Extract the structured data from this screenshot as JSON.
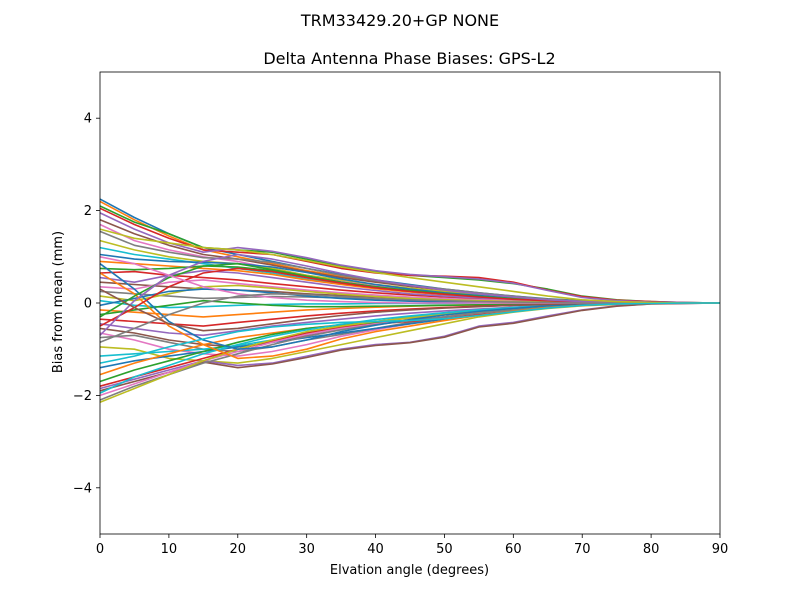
{
  "chart_data": {
    "type": "line",
    "suptitle": "TRM33429.20+GP  NONE",
    "title": "Delta Antenna Phase Biases: GPS-L2",
    "xlabel": "Elvation angle (degrees)",
    "ylabel": "Bias from mean (mm)",
    "xlim": [
      0,
      90
    ],
    "ylim": [
      -5,
      5
    ],
    "xticks": [
      0,
      10,
      20,
      30,
      40,
      50,
      60,
      70,
      80,
      90
    ],
    "yticks": [
      -4,
      -2,
      0,
      2,
      4
    ],
    "ytick_labels": [
      "−4",
      "−2",
      "0",
      "2",
      "4"
    ],
    "x": [
      0,
      5,
      10,
      15,
      20,
      25,
      30,
      35,
      40,
      45,
      50,
      55,
      60,
      65,
      70,
      75,
      80,
      85,
      90
    ],
    "colors": [
      "#1f77b4",
      "#ff7f0e",
      "#2ca02c",
      "#d62728",
      "#9467bd",
      "#8c564b",
      "#e377c2",
      "#7f7f7f",
      "#bcbd22",
      "#17becf"
    ],
    "series": [
      {
        "values": [
          2.25,
          1.85,
          1.5,
          1.2,
          1.05,
          0.9,
          0.75,
          0.62,
          0.5,
          0.4,
          0.3,
          0.22,
          0.15,
          0.09,
          0.05,
          0.02,
          0.01,
          0.0,
          0.0
        ]
      },
      {
        "values": [
          2.2,
          1.8,
          1.45,
          1.15,
          1.0,
          0.85,
          0.7,
          0.58,
          0.47,
          0.37,
          0.28,
          0.2,
          0.13,
          0.08,
          0.04,
          0.02,
          0.01,
          0.0,
          0.0
        ]
      },
      {
        "values": [
          2.1,
          1.75,
          1.5,
          1.2,
          1.15,
          1.1,
          0.95,
          0.8,
          0.68,
          0.6,
          0.55,
          0.5,
          0.42,
          0.3,
          0.15,
          0.07,
          0.03,
          0.01,
          0.0
        ]
      },
      {
        "values": [
          2.05,
          1.7,
          1.4,
          1.15,
          1.1,
          1.05,
          0.9,
          0.75,
          0.65,
          0.6,
          0.58,
          0.55,
          0.45,
          0.28,
          0.14,
          0.06,
          0.03,
          0.01,
          0.0
        ]
      },
      {
        "values": [
          1.95,
          1.6,
          1.3,
          1.1,
          1.2,
          1.12,
          0.98,
          0.82,
          0.7,
          0.62,
          0.57,
          0.52,
          0.43,
          0.27,
          0.12,
          0.05,
          0.02,
          0.01,
          0.0
        ]
      },
      {
        "values": [
          1.8,
          1.5,
          1.25,
          1.05,
          0.95,
          0.82,
          0.68,
          0.55,
          0.45,
          0.36,
          0.28,
          0.2,
          0.14,
          0.08,
          0.04,
          0.02,
          0.01,
          0.0,
          0.0
        ]
      },
      {
        "values": [
          1.7,
          1.35,
          1.15,
          1.0,
          0.9,
          0.75,
          0.6,
          0.48,
          0.38,
          0.3,
          0.22,
          0.16,
          0.1,
          0.06,
          0.03,
          0.01,
          0.0,
          0.0,
          0.0
        ]
      },
      {
        "values": [
          1.55,
          1.25,
          1.1,
          0.98,
          0.95,
          0.88,
          0.75,
          0.6,
          0.48,
          0.38,
          0.3,
          0.22,
          0.15,
          0.08,
          0.04,
          0.02,
          0.01,
          0.0,
          0.0
        ]
      },
      {
        "values": [
          1.35,
          1.15,
          1.0,
          0.9,
          0.85,
          0.75,
          0.6,
          0.5,
          0.4,
          0.32,
          0.25,
          0.18,
          0.12,
          0.07,
          0.03,
          0.01,
          0.0,
          0.0,
          0.0
        ]
      },
      {
        "values": [
          1.2,
          1.05,
          0.95,
          0.85,
          0.75,
          0.65,
          0.52,
          0.42,
          0.33,
          0.26,
          0.2,
          0.15,
          0.1,
          0.06,
          0.03,
          0.01,
          0.0,
          0.0,
          0.0
        ]
      },
      {
        "values": [
          1.05,
          0.95,
          0.9,
          0.88,
          0.85,
          0.78,
          0.66,
          0.52,
          0.4,
          0.3,
          0.22,
          0.16,
          0.1,
          0.06,
          0.03,
          0.01,
          0.0,
          0.0,
          0.0
        ]
      },
      {
        "values": [
          0.9,
          0.85,
          0.8,
          0.75,
          0.7,
          0.62,
          0.5,
          0.4,
          0.31,
          0.24,
          0.18,
          0.13,
          0.09,
          0.05,
          0.02,
          0.01,
          0.0,
          0.0,
          0.0
        ]
      },
      {
        "values": [
          0.75,
          0.72,
          0.75,
          0.8,
          0.78,
          0.7,
          0.58,
          0.45,
          0.35,
          0.27,
          0.2,
          0.14,
          0.09,
          0.05,
          0.02,
          0.01,
          0.0,
          0.0,
          0.0
        ]
      },
      {
        "values": [
          0.65,
          0.68,
          0.6,
          0.55,
          0.5,
          0.42,
          0.35,
          0.28,
          0.22,
          0.17,
          0.13,
          0.09,
          0.06,
          0.04,
          0.02,
          0.01,
          0.0,
          0.0,
          0.0
        ]
      },
      {
        "values": [
          0.55,
          0.45,
          0.6,
          0.7,
          0.65,
          0.55,
          0.45,
          0.35,
          0.27,
          0.2,
          0.15,
          0.11,
          0.07,
          0.04,
          0.02,
          0.01,
          0.0,
          0.0,
          0.0
        ]
      },
      {
        "values": [
          0.45,
          0.4,
          0.35,
          0.3,
          0.28,
          0.25,
          0.2,
          0.16,
          0.13,
          0.1,
          0.08,
          0.06,
          0.04,
          0.02,
          0.01,
          0.0,
          0.0,
          0.0,
          0.0
        ]
      },
      {
        "values": [
          0.35,
          0.3,
          0.45,
          0.5,
          0.42,
          0.35,
          0.28,
          0.22,
          0.17,
          0.13,
          0.1,
          0.07,
          0.05,
          0.03,
          0.01,
          0.0,
          0.0,
          0.0,
          0.0
        ]
      },
      {
        "values": [
          0.25,
          0.2,
          0.15,
          0.1,
          0.12,
          0.14,
          0.13,
          0.11,
          0.09,
          0.07,
          0.05,
          0.04,
          0.03,
          0.02,
          0.01,
          0.0,
          0.0,
          0.0,
          0.0
        ]
      },
      {
        "values": [
          0.15,
          0.05,
          0.2,
          0.35,
          0.38,
          0.32,
          0.25,
          0.19,
          0.14,
          0.1,
          0.07,
          0.05,
          0.03,
          0.02,
          0.01,
          0.0,
          0.0,
          0.0,
          0.0
        ]
      },
      {
        "values": [
          0.05,
          -0.05,
          -0.1,
          -0.08,
          -0.05,
          -0.03,
          -0.02,
          -0.02,
          -0.01,
          -0.01,
          -0.01,
          0.0,
          0.0,
          0.0,
          0.0,
          0.0,
          0.0,
          0.0,
          0.0
        ]
      },
      {
        "values": [
          -0.05,
          0.1,
          0.25,
          0.3,
          0.28,
          0.22,
          0.15,
          0.1,
          0.06,
          0.04,
          0.02,
          0.01,
          0.0,
          0.0,
          0.0,
          0.0,
          0.0,
          0.0,
          0.0
        ]
      },
      {
        "values": [
          -0.15,
          -0.2,
          -0.25,
          -0.3,
          -0.25,
          -0.2,
          -0.15,
          -0.12,
          -0.09,
          -0.07,
          -0.05,
          -0.04,
          -0.03,
          -0.02,
          -0.01,
          0.0,
          0.0,
          0.0,
          0.0
        ]
      },
      {
        "values": [
          -0.25,
          -0.15,
          -0.05,
          0.05,
          0.0,
          -0.05,
          -0.08,
          -0.08,
          -0.07,
          -0.06,
          -0.05,
          -0.04,
          -0.03,
          -0.02,
          -0.01,
          0.0,
          0.0,
          0.0,
          0.0
        ]
      },
      {
        "values": [
          -0.35,
          -0.4,
          -0.45,
          -0.5,
          -0.42,
          -0.35,
          -0.28,
          -0.22,
          -0.17,
          -0.13,
          -0.1,
          -0.07,
          -0.05,
          -0.03,
          -0.01,
          0.0,
          0.0,
          0.0,
          0.0
        ]
      },
      {
        "values": [
          -0.45,
          -0.55,
          -0.65,
          -0.7,
          -0.6,
          -0.5,
          -0.42,
          -0.35,
          -0.28,
          -0.22,
          -0.17,
          -0.13,
          -0.09,
          -0.05,
          -0.02,
          -0.01,
          0.0,
          0.0,
          0.0
        ]
      },
      {
        "values": [
          -0.55,
          -0.65,
          -0.8,
          -0.9,
          -0.95,
          -0.85,
          -0.7,
          -0.55,
          -0.45,
          -0.38,
          -0.3,
          -0.22,
          -0.15,
          -0.08,
          -0.04,
          -0.02,
          -0.01,
          0.0,
          0.0
        ]
      },
      {
        "values": [
          -0.65,
          -0.8,
          -1.0,
          -1.1,
          -1.15,
          -1.05,
          -0.9,
          -0.72,
          -0.58,
          -0.45,
          -0.32,
          -0.22,
          -0.15,
          -0.08,
          -0.04,
          -0.02,
          -0.01,
          0.0,
          0.0
        ]
      },
      {
        "values": [
          -0.75,
          -0.7,
          -0.85,
          -1.0,
          -1.05,
          -0.95,
          -0.8,
          -0.68,
          -0.55,
          -0.42,
          -0.3,
          -0.21,
          -0.14,
          -0.08,
          -0.04,
          -0.02,
          -0.01,
          0.0,
          0.0
        ]
      },
      {
        "values": [
          -0.95,
          -1.0,
          -1.2,
          -1.25,
          -1.3,
          -1.2,
          -1.05,
          -0.9,
          -0.75,
          -0.6,
          -0.45,
          -0.3,
          -0.2,
          -0.12,
          -0.06,
          -0.03,
          -0.01,
          0.0,
          0.0
        ]
      },
      {
        "values": [
          -1.15,
          -1.1,
          -1.05,
          -1.0,
          -0.92,
          -0.8,
          -0.65,
          -0.52,
          -0.4,
          -0.3,
          -0.22,
          -0.15,
          -0.1,
          -0.06,
          -0.03,
          -0.01,
          0.0,
          0.0,
          0.0
        ]
      },
      {
        "values": [
          -1.4,
          -1.25,
          -1.15,
          -1.05,
          -0.95,
          -0.85,
          -0.75,
          -0.65,
          -0.55,
          -0.45,
          -0.35,
          -0.25,
          -0.17,
          -0.1,
          -0.05,
          -0.02,
          -0.01,
          0.0,
          0.0
        ]
      },
      {
        "values": [
          -1.55,
          -1.3,
          -1.1,
          -0.9,
          -0.75,
          -0.65,
          -0.55,
          -0.47,
          -0.4,
          -0.33,
          -0.26,
          -0.19,
          -0.13,
          -0.07,
          -0.03,
          -0.01,
          0.0,
          0.0,
          0.0
        ]
      },
      {
        "values": [
          -1.7,
          -1.45,
          -1.25,
          -1.05,
          -0.85,
          -0.68,
          -0.55,
          -0.48,
          -0.42,
          -0.38,
          -0.3,
          -0.22,
          -0.15,
          -0.08,
          -0.04,
          -0.02,
          -0.01,
          0.0,
          0.0
        ]
      },
      {
        "values": [
          -1.8,
          -1.6,
          -1.4,
          -1.2,
          -1.0,
          -0.82,
          -0.65,
          -0.52,
          -0.45,
          -0.4,
          -0.33,
          -0.25,
          -0.17,
          -0.1,
          -0.05,
          -0.02,
          -0.01,
          0.0,
          0.0
        ]
      },
      {
        "values": [
          -1.85,
          -1.65,
          -1.45,
          -1.25,
          -1.35,
          -1.3,
          -1.15,
          -1.0,
          -0.9,
          -0.85,
          -0.72,
          -0.5,
          -0.42,
          -0.28,
          -0.15,
          -0.06,
          -0.02,
          -0.01,
          0.0
        ]
      },
      {
        "values": [
          -1.9,
          -1.7,
          -1.5,
          -1.28,
          -1.4,
          -1.32,
          -1.18,
          -1.02,
          -0.92,
          -0.86,
          -0.74,
          -0.52,
          -0.44,
          -0.3,
          -0.16,
          -0.07,
          -0.02,
          -0.01,
          0.0
        ]
      },
      {
        "values": [
          -2.0,
          -1.75,
          -1.5,
          -1.25,
          -1.05,
          -0.85,
          -0.68,
          -0.55,
          -0.45,
          -0.38,
          -0.3,
          -0.22,
          -0.15,
          -0.08,
          -0.04,
          -0.02,
          -0.01,
          0.0,
          0.0
        ]
      },
      {
        "values": [
          -2.1,
          -1.8,
          -1.55,
          -1.3,
          -1.1,
          -0.9,
          -0.72,
          -0.58,
          -0.47,
          -0.38,
          -0.3,
          -0.22,
          -0.15,
          -0.08,
          -0.04,
          -0.02,
          -0.01,
          0.0,
          0.0
        ]
      },
      {
        "values": [
          -2.15,
          -1.85,
          -1.55,
          -1.25,
          -1.0,
          -0.8,
          -0.62,
          -0.5,
          -0.4,
          -0.32,
          -0.25,
          -0.18,
          -0.12,
          -0.06,
          -0.03,
          -0.01,
          0.0,
          0.0,
          0.0
        ]
      },
      {
        "values": [
          -1.95,
          -1.6,
          -1.35,
          -1.1,
          -0.9,
          -0.72,
          -0.58,
          -0.46,
          -0.36,
          -0.28,
          -0.21,
          -0.15,
          -0.1,
          -0.05,
          -0.02,
          -0.01,
          0.0,
          0.0,
          0.0
        ]
      },
      {
        "values": [
          0.85,
          0.3,
          -0.4,
          -0.8,
          -1.0,
          -0.95,
          -0.8,
          -0.62,
          -0.48,
          -0.36,
          -0.26,
          -0.18,
          -0.12,
          -0.06,
          -0.03,
          -0.01,
          0.0,
          0.0,
          0.0
        ]
      },
      {
        "values": [
          0.65,
          0.2,
          -0.5,
          -0.9,
          -1.2,
          -1.15,
          -1.0,
          -0.78,
          -0.62,
          -0.5,
          -0.38,
          -0.27,
          -0.18,
          -0.1,
          -0.05,
          -0.02,
          -0.01,
          0.0,
          0.0
        ]
      },
      {
        "values": [
          -0.3,
          0.15,
          0.55,
          0.8,
          0.85,
          0.72,
          0.58,
          0.45,
          0.35,
          0.27,
          0.2,
          0.14,
          0.09,
          0.05,
          0.02,
          0.01,
          0.0,
          0.0,
          0.0
        ]
      },
      {
        "values": [
          -0.5,
          -0.1,
          0.35,
          0.65,
          0.75,
          0.68,
          0.55,
          0.43,
          0.33,
          0.25,
          0.19,
          0.13,
          0.08,
          0.05,
          0.02,
          0.01,
          0.0,
          0.0,
          0.0
        ]
      },
      {
        "values": [
          -0.7,
          0.05,
          0.6,
          0.9,
          1.05,
          0.95,
          0.8,
          0.64,
          0.5,
          0.38,
          0.28,
          0.2,
          0.13,
          0.07,
          0.03,
          0.01,
          0.0,
          0.0,
          0.0
        ]
      },
      {
        "values": [
          0.3,
          -0.1,
          -0.45,
          -0.6,
          -0.55,
          -0.45,
          -0.35,
          -0.27,
          -0.2,
          -0.15,
          -0.11,
          -0.08,
          -0.05,
          -0.03,
          -0.01,
          0.0,
          0.0,
          0.0,
          0.0
        ]
      },
      {
        "values": [
          1.0,
          0.85,
          0.6,
          0.35,
          0.2,
          0.12,
          0.06,
          0.03,
          0.01,
          0.0,
          0.0,
          0.0,
          0.0,
          0.0,
          0.0,
          0.0,
          0.0,
          0.0,
          0.0
        ]
      },
      {
        "values": [
          -0.85,
          -0.55,
          -0.25,
          0.0,
          0.15,
          0.2,
          0.18,
          0.14,
          0.1,
          0.07,
          0.05,
          0.03,
          0.02,
          0.01,
          0.0,
          0.0,
          0.0,
          0.0,
          0.0
        ]
      },
      {
        "values": [
          1.6,
          1.4,
          1.3,
          1.2,
          1.15,
          1.05,
          0.92,
          0.78,
          0.66,
          0.55,
          0.45,
          0.35,
          0.25,
          0.15,
          0.07,
          0.03,
          0.01,
          0.0,
          0.0
        ]
      },
      {
        "values": [
          -1.3,
          -1.15,
          -0.95,
          -0.78,
          -0.62,
          -0.52,
          -0.46,
          -0.42,
          -0.4,
          -0.38,
          -0.34,
          -0.27,
          -0.19,
          -0.11,
          -0.05,
          -0.02,
          -0.01,
          0.0,
          0.0
        ]
      }
    ]
  }
}
